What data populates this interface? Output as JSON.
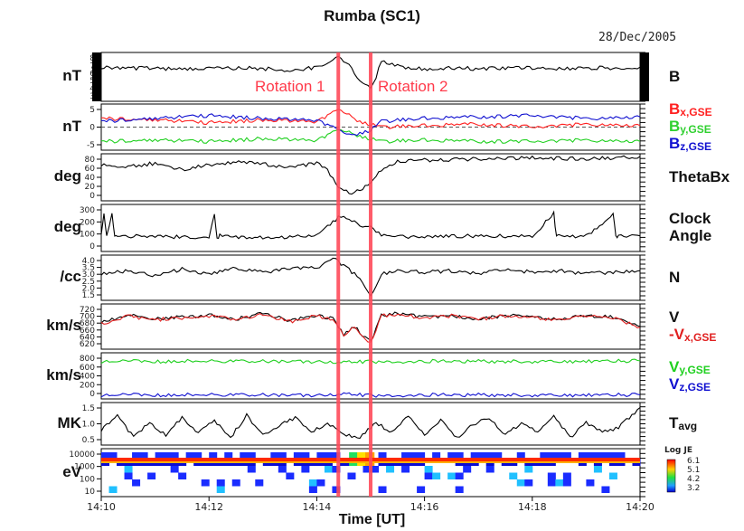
{
  "title": "Rumba (SC1)",
  "date": "28/Dec/2005",
  "xlabel": "Time [UT]",
  "annotations": [
    "Rotation 1",
    "Rotation 2"
  ],
  "chart_data": {
    "type": "line",
    "x_axis": {
      "range": [
        "14:10",
        "14:20"
      ],
      "ticks": [
        "14:10",
        "14:12",
        "14:14",
        "14:16",
        "14:18",
        "14:20"
      ]
    },
    "rotation_markers": [
      "14:14.4",
      "14:15.0"
    ],
    "panels": [
      {
        "unit": "nT",
        "label": "B",
        "yticks": [
          "8",
          "7",
          "6",
          "5",
          "4",
          "3"
        ],
        "ylim": [
          2.5,
          8.5
        ],
        "series": [
          {
            "name": "B",
            "color": "#000000",
            "x": [
              0,
              0.5,
              1,
              1.5,
              2,
              2.5,
              3,
              3.5,
              4,
              4.2,
              4.4,
              4.5,
              4.6,
              4.7,
              4.8,
              4.9,
              5.0,
              5.1,
              5.2,
              5.5,
              6,
              6.5,
              7,
              7.5,
              8,
              8.5,
              9,
              9.5,
              10
            ],
            "y": [
              6.7,
              6.6,
              6.5,
              6.4,
              6.5,
              6.6,
              6.5,
              6.3,
              6.7,
              7.0,
              8.0,
              7.5,
              7.0,
              6.0,
              5.2,
              4.5,
              4.0,
              5.5,
              7.5,
              6.8,
              6.5,
              6.6,
              6.5,
              6.6,
              6.6,
              6.5,
              6.6,
              6.6,
              6.7
            ]
          }
        ]
      },
      {
        "unit": "nT",
        "label": "B",
        "label_sub": "x,GSE",
        "label2": "B",
        "label2_sub": "y,GSE",
        "label3": "B",
        "label3_sub": "z,GSE",
        "yticks": [
          "5",
          "0",
          "-5"
        ],
        "ylim": [
          -8,
          8
        ],
        "zero_line": true,
        "series": [
          {
            "name": "Bx,GSE",
            "color": "#ff2020",
            "x": [
              0,
              1,
              2,
              3,
              4,
              4.4,
              4.6,
              4.8,
              5.0,
              5.2,
              6,
              7,
              8,
              9,
              10
            ],
            "y": [
              3,
              2.5,
              1.5,
              2.5,
              2,
              6,
              4,
              2,
              1,
              0,
              0.5,
              1,
              0,
              1,
              0.5
            ]
          },
          {
            "name": "By,GSE",
            "color": "#20d020",
            "x": [
              0,
              1,
              2,
              3,
              4,
              4.4,
              4.6,
              4.8,
              5.0,
              5.2,
              6,
              7,
              8,
              9,
              10
            ],
            "y": [
              -5,
              -4.5,
              -5,
              -4,
              -4.5,
              -1,
              -2,
              -3,
              -4,
              -5,
              -4.5,
              -5,
              -5,
              -4.5,
              -5
            ]
          },
          {
            "name": "Bz,GSE",
            "color": "#1010d0",
            "x": [
              0,
              1,
              2,
              3,
              4,
              4.4,
              4.6,
              4.8,
              5.0,
              5.2,
              6,
              7,
              8,
              9,
              10
            ],
            "y": [
              2,
              3,
              4,
              3,
              2.5,
              -1,
              -3,
              -2,
              -1,
              2,
              3,
              3.5,
              4,
              3,
              3.5
            ]
          }
        ]
      },
      {
        "unit": "deg",
        "label": "ThetaBx",
        "yticks": [
          "80",
          "60",
          "40",
          "20",
          "0"
        ],
        "ylim": [
          0,
          90
        ],
        "series": [
          {
            "name": "ThetaBx",
            "color": "#000000",
            "x": [
              0,
              0.5,
              1,
              1.5,
              2,
              2.5,
              3,
              3.5,
              4,
              4.2,
              4.4,
              4.6,
              4.8,
              5.0,
              5.2,
              5.5,
              6,
              7,
              8,
              9,
              10
            ],
            "y": [
              70,
              65,
              72,
              60,
              68,
              75,
              70,
              65,
              72,
              60,
              25,
              15,
              20,
              35,
              60,
              75,
              78,
              80,
              82,
              80,
              85
            ]
          }
        ]
      },
      {
        "unit": "deg",
        "label": "Clock",
        "label2": "Angle",
        "yticks": [
          "300",
          "200",
          "100",
          "0"
        ],
        "ylim": [
          0,
          360
        ],
        "series": [
          {
            "name": "Clock Angle",
            "color": "#000000",
            "x": [
              0,
              0.05,
              0.1,
              0.2,
              0.25,
              0.3,
              1,
              2,
              2.1,
              2.15,
              2.2,
              3,
              4,
              4.4,
              4.6,
              4.8,
              5.0,
              5.2,
              6,
              7,
              8,
              8.4,
              8.45,
              8.5,
              9,
              9.5,
              9.55,
              9.6,
              10
            ],
            "y": [
              130,
              300,
              120,
              300,
              110,
              120,
              115,
              110,
              290,
              100,
              120,
              105,
              120,
              260,
              250,
              200,
              180,
              120,
              110,
              120,
              115,
              290,
              110,
              120,
              115,
              280,
              120,
              115,
              120
            ]
          }
        ]
      },
      {
        "unit": "/cc",
        "label": "N",
        "yticks": [
          "4.0",
          "3.5",
          "3.0",
          "2.5",
          "2.0",
          "1.5"
        ],
        "ylim": [
          1.3,
          4.2
        ],
        "series": [
          {
            "name": "N",
            "color": "#000000",
            "x": [
              0,
              0.5,
              1,
              1.5,
              2,
              2.5,
              3,
              3.5,
              4,
              4.3,
              4.5,
              4.7,
              4.9,
              5.0,
              5.2,
              5.5,
              6,
              6.5,
              7,
              7.5,
              8,
              8.5,
              9,
              9.5,
              10
            ],
            "y": [
              3.0,
              3.2,
              2.9,
              3.3,
              3.0,
              3.4,
              3.1,
              3.3,
              3.4,
              4.0,
              3.5,
              3.0,
              2.2,
              1.5,
              3.0,
              3.2,
              3.1,
              3.2,
              3.0,
              3.3,
              3.1,
              3.2,
              3.0,
              3.1,
              3.2
            ]
          }
        ]
      },
      {
        "unit": "km/s",
        "label": "V",
        "label2": "-V",
        "label2_sub": "x,GSE",
        "yticks": [
          "720",
          "700",
          "680",
          "660",
          "640",
          "620"
        ],
        "ylim": [
          610,
          730
        ],
        "series": [
          {
            "name": "V",
            "color": "#000000",
            "x": [
              0,
              0.5,
              1,
              1.5,
              2,
              2.5,
              3,
              3.5,
              4,
              4.3,
              4.5,
              4.7,
              4.9,
              5.0,
              5.2,
              5.5,
              6,
              6.5,
              7,
              7.5,
              8,
              8.5,
              9,
              9.5,
              10
            ],
            "y": [
              680,
              700,
              690,
              695,
              700,
              690,
              705,
              685,
              700,
              690,
              650,
              670,
              640,
              630,
              700,
              705,
              695,
              700,
              690,
              700,
              695,
              690,
              700,
              695,
              670
            ]
          },
          {
            "name": "-Vx,GSE",
            "color": "#e02020",
            "x": [
              0,
              0.5,
              1,
              1.5,
              2,
              2.5,
              3,
              3.5,
              4,
              4.3,
              4.5,
              4.7,
              4.9,
              5.0,
              5.2,
              5.5,
              6,
              6.5,
              7,
              7.5,
              8,
              8.5,
              9,
              9.5,
              10
            ],
            "y": [
              678,
              698,
              688,
              693,
              698,
              688,
              703,
              683,
              698,
              688,
              648,
              668,
              638,
              628,
              698,
              703,
              693,
              698,
              688,
              698,
              693,
              688,
              698,
              693,
              668
            ]
          }
        ]
      },
      {
        "unit": "km/s",
        "label": "V",
        "label_sub": "y,GSE",
        "label2": "V",
        "label2_sub": "z,GSE",
        "yticks": [
          "800",
          "600",
          "400",
          "200",
          "0"
        ],
        "ylim": [
          -60,
          900
        ],
        "series": [
          {
            "name": "Vy,GSE",
            "color": "#20d020",
            "x": [
              0,
              2,
              4,
              4.5,
              5,
              6,
              8,
              10
            ],
            "y": [
              720,
              725,
              720,
              700,
              715,
              725,
              720,
              730
            ]
          },
          {
            "name": "Vz,GSE",
            "color": "#1010d0",
            "x": [
              0,
              2,
              4,
              4.5,
              5,
              6,
              8,
              10
            ],
            "y": [
              20,
              25,
              20,
              40,
              10,
              25,
              20,
              25
            ]
          }
        ]
      },
      {
        "unit": "MK",
        "label": "T",
        "label_sub": "avg",
        "yticks": [
          "1.5",
          "1.0",
          "0.5"
        ],
        "ylim": [
          0.1,
          1.8
        ],
        "series": [
          {
            "name": "Tavg",
            "color": "#000000",
            "x": [
              0,
              0.3,
              0.6,
              0.9,
              1.2,
              1.5,
              1.8,
              2.1,
              2.4,
              2.7,
              3.0,
              3.3,
              3.6,
              3.9,
              4.2,
              4.5,
              4.8,
              5.1,
              5.4,
              5.7,
              6.0,
              6.3,
              6.6,
              6.9,
              7.2,
              7.5,
              7.8,
              8.1,
              8.4,
              8.7,
              9.0,
              9.3,
              9.6,
              10
            ],
            "y": [
              0.7,
              1.3,
              0.4,
              1.0,
              0.5,
              1.2,
              0.6,
              1.1,
              0.4,
              1.3,
              0.5,
              0.9,
              1.2,
              0.6,
              1.0,
              0.5,
              0.4,
              1.0,
              0.6,
              1.3,
              0.5,
              1.1,
              0.4,
              0.9,
              1.2,
              0.5,
              1.0,
              0.6,
              1.3,
              0.4,
              1.0,
              0.6,
              0.8,
              1.6
            ]
          }
        ]
      },
      {
        "unit": "eV",
        "type": "heatmap",
        "yticks": [
          "10000",
          "1000",
          "100",
          "10"
        ],
        "colorbar": {
          "title": "Log JE",
          "ticks": [
            "6.1",
            "5.1",
            "4.2",
            "3.2"
          ]
        }
      }
    ]
  }
}
